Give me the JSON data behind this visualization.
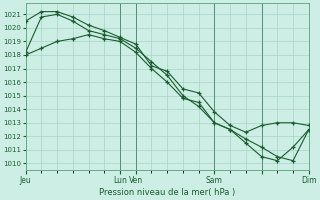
{
  "bg_color": "#cceee4",
  "grid_color": "#aad4c8",
  "line_color": "#1a5c30",
  "xlabel": "Pression niveau de la mer( hPa )",
  "ylim": [
    1009.5,
    1021.8
  ],
  "yticks": [
    1010,
    1011,
    1012,
    1013,
    1014,
    1015,
    1016,
    1017,
    1018,
    1019,
    1020,
    1021
  ],
  "xlim": [
    0,
    108
  ],
  "xtick_positions": [
    0,
    36,
    42,
    72,
    90,
    108
  ],
  "xtick_labels": [
    "Jeu",
    "Lun",
    "Ven",
    "Sam",
    "",
    "Dim"
  ],
  "line1": {
    "x": [
      0,
      6,
      12,
      18,
      24,
      30,
      36,
      42,
      48,
      54,
      60,
      66,
      72,
      78,
      84,
      90,
      96,
      102,
      108
    ],
    "y": [
      1020.5,
      1021.2,
      1021.2,
      1020.8,
      1020.2,
      1019.8,
      1019.3,
      1018.8,
      1017.2,
      1016.8,
      1015.5,
      1015.2,
      1013.8,
      1012.8,
      1012.3,
      1012.8,
      1013.0,
      1013.0,
      1012.8
    ]
  },
  "line2": {
    "x": [
      0,
      6,
      12,
      18,
      24,
      30,
      36,
      42,
      48,
      54,
      60,
      66,
      72,
      78,
      84,
      90,
      96,
      102,
      108
    ],
    "y": [
      1018.2,
      1020.8,
      1021.0,
      1020.5,
      1019.8,
      1019.5,
      1019.2,
      1018.5,
      1017.5,
      1016.5,
      1015.0,
      1014.2,
      1013.0,
      1012.5,
      1011.5,
      1010.5,
      1010.2,
      1011.2,
      1012.5
    ]
  },
  "line3": {
    "x": [
      0,
      6,
      12,
      18,
      24,
      30,
      36,
      42,
      48,
      54,
      60,
      66,
      72,
      78,
      84,
      90,
      96,
      102,
      108
    ],
    "y": [
      1018.0,
      1018.5,
      1019.0,
      1019.2,
      1019.5,
      1019.2,
      1019.0,
      1018.2,
      1017.0,
      1016.0,
      1014.8,
      1014.5,
      1013.0,
      1012.5,
      1011.8,
      1011.2,
      1010.5,
      1010.2,
      1012.5
    ]
  },
  "vlines": [
    0,
    36,
    42,
    72,
    90,
    108
  ]
}
